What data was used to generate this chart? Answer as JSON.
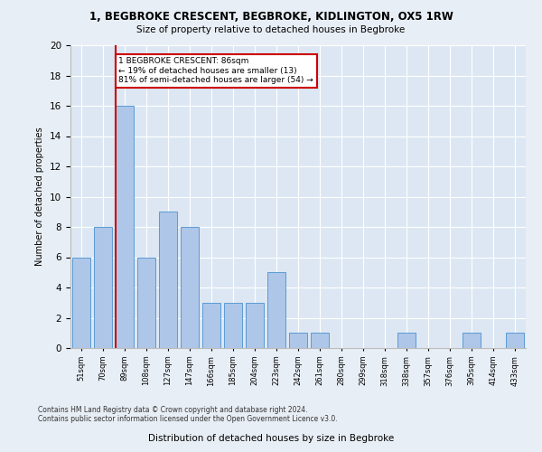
{
  "title": "1, BEGBROKE CRESCENT, BEGBROKE, KIDLINGTON, OX5 1RW",
  "subtitle": "Size of property relative to detached houses in Begbroke",
  "xlabel": "Distribution of detached houses by size in Begbroke",
  "ylabel": "Number of detached properties",
  "categories": [
    "51sqm",
    "70sqm",
    "89sqm",
    "108sqm",
    "127sqm",
    "147sqm",
    "166sqm",
    "185sqm",
    "204sqm",
    "223sqm",
    "242sqm",
    "261sqm",
    "280sqm",
    "299sqm",
    "318sqm",
    "338sqm",
    "357sqm",
    "376sqm",
    "395sqm",
    "414sqm",
    "433sqm"
  ],
  "values": [
    6,
    8,
    16,
    6,
    9,
    8,
    3,
    3,
    3,
    5,
    1,
    1,
    0,
    0,
    0,
    1,
    0,
    0,
    1,
    0,
    1
  ],
  "bar_color": "#aec6e8",
  "bar_edge_color": "#5b9bd5",
  "ylim": [
    0,
    20
  ],
  "yticks": [
    0,
    2,
    4,
    6,
    8,
    10,
    12,
    14,
    16,
    18,
    20
  ],
  "red_line_index": 2,
  "annotation_text": "1 BEGBROKE CRESCENT: 86sqm\n← 19% of detached houses are smaller (13)\n81% of semi-detached houses are larger (54) →",
  "annotation_box_color": "#ffffff",
  "annotation_box_edge": "#cc0000",
  "footer_line1": "Contains HM Land Registry data © Crown copyright and database right 2024.",
  "footer_line2": "Contains public sector information licensed under the Open Government Licence v3.0.",
  "bg_color": "#e8eef5",
  "plot_bg_color": "#dce7f3"
}
